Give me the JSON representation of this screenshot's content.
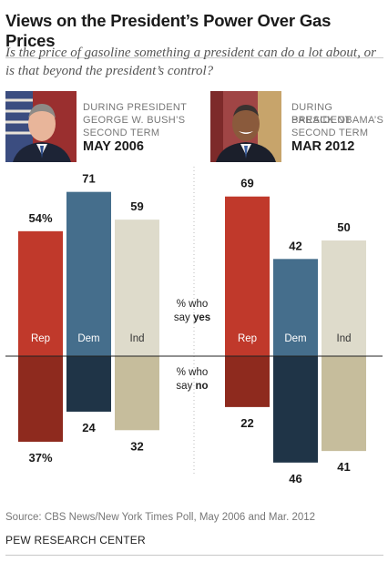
{
  "title": "Views on the President’s Power Over Gas Prices",
  "subtitle": "Is the price of gasoline something a president can do a lot about, or is that beyond the president’s control?",
  "panels": [
    {
      "era_line1": "DURING PRESIDENT",
      "era_line2": "GEORGE W. BUSH’S",
      "era_line3": "SECOND TERM",
      "date": "MAY 2006"
    },
    {
      "era_line1": "DURING PRESIDENT",
      "era_line2": "BARACK OBAMA’S",
      "era_line3": "SECOND TERM",
      "date": "MAR 2012"
    }
  ],
  "labels": {
    "yes_prefix": "% who",
    "yes_line2_prefix": "say ",
    "yes_word": "yes",
    "no_prefix": "% who",
    "no_line2_prefix": "say ",
    "no_word": "no"
  },
  "source": "Source: CBS News/New York Times Poll, May 2006 and Mar. 2012",
  "org": "PEW RESEARCH CENTER",
  "colors": {
    "Rep_yes": "#c0392b",
    "Rep_no": "#8e2a1e",
    "Dem_yes": "#456e8c",
    "Dem_no": "#1f3447",
    "Ind_yes": "#dedbcb",
    "Ind_no": "#c6bd9c"
  },
  "chart_data": [
    {
      "type": "bar",
      "period": "MAY 2006",
      "categories": [
        "Rep",
        "Dem",
        "Ind"
      ],
      "series": [
        {
          "name": "yes",
          "values": [
            54,
            71,
            59
          ],
          "labels": [
            "54%",
            "71",
            "59"
          ]
        },
        {
          "name": "no",
          "values": [
            37,
            24,
            32
          ],
          "labels": [
            "37%",
            "24",
            "32"
          ]
        }
      ]
    },
    {
      "type": "bar",
      "period": "MAR 2012",
      "categories": [
        "Rep",
        "Dem",
        "Ind"
      ],
      "series": [
        {
          "name": "yes",
          "values": [
            69,
            42,
            50
          ],
          "labels": [
            "69",
            "42",
            "50"
          ]
        },
        {
          "name": "no",
          "values": [
            22,
            46,
            41
          ],
          "labels": [
            "22",
            "46",
            "41"
          ]
        }
      ]
    }
  ]
}
